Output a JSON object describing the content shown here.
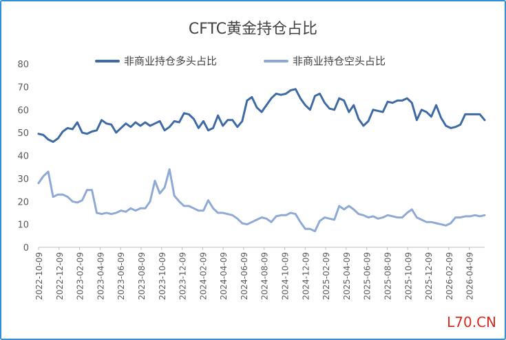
{
  "watermark": "L70.CN",
  "chart_data": {
    "type": "line",
    "title": "CFTC黄金持仓占比",
    "xlabel": "",
    "ylabel": "",
    "ylim": [
      0,
      80
    ],
    "yticks": [
      0,
      10,
      20,
      30,
      40,
      50,
      60,
      70,
      80
    ],
    "grid": false,
    "legend_position": "top",
    "x_tick_labels": [
      "2022-10-09",
      "2022-12-09",
      "2023-02-09",
      "2023-04-09",
      "2023-06-09",
      "2023-08-09",
      "2023-10-09",
      "2023-12-09",
      "2024-02-09",
      "2024-04-09",
      "2024-06-09",
      "2024-08-09",
      "2024-10-09",
      "2024-12-09",
      "2025-02-09",
      "2025-04-09",
      "2025-06-09",
      "2025-08-09",
      "2025-10-09",
      "2025-12-09",
      "2026-02-09",
      "2026-04-09"
    ],
    "series": [
      {
        "name": "非商业持仓多头占比",
        "color": "#3d6aa3",
        "values": [
          49.5,
          49,
          47,
          46,
          47.5,
          50.5,
          52,
          51.5,
          54.5,
          50,
          49.5,
          50.5,
          51,
          55.5,
          54,
          53.5,
          50,
          52,
          54,
          52.5,
          54.5,
          53,
          54.5,
          53,
          54,
          55,
          51,
          52.5,
          55,
          54.5,
          58.5,
          58,
          56,
          52,
          55,
          51,
          52,
          57.5,
          53,
          55.5,
          55.5,
          52.5,
          55,
          64,
          65.5,
          61,
          59,
          62,
          65,
          67,
          66.5,
          67,
          68.5,
          69,
          65,
          62,
          60,
          66,
          67,
          63,
          60.5,
          60,
          65,
          64,
          59,
          62,
          56,
          53,
          55,
          60,
          59.5,
          59,
          63.5,
          63,
          64,
          64,
          65,
          63,
          55.5,
          60,
          59,
          57,
          62,
          56.5,
          53,
          52,
          52.5,
          53.5,
          58,
          58,
          58,
          58,
          55.5
        ]
      },
      {
        "name": "非商业持仓空头占比",
        "color": "#8ea9d4",
        "values": [
          28,
          31,
          33,
          22,
          23,
          23,
          22,
          20,
          19.5,
          20.5,
          25,
          25,
          15,
          14.5,
          15,
          14.5,
          15,
          16,
          15.5,
          17,
          16,
          17,
          17,
          20,
          29,
          23.5,
          26,
          34,
          22.5,
          20,
          18,
          18,
          17,
          16,
          16,
          20.5,
          17,
          15,
          15,
          14.5,
          14,
          12.5,
          10.5,
          10,
          11,
          12,
          13,
          12.5,
          11,
          13.5,
          14,
          14,
          15,
          14.5,
          11,
          8,
          8,
          7,
          11.5,
          13,
          12.5,
          12,
          18,
          16.5,
          18,
          16.5,
          14.5,
          14,
          13,
          13.5,
          12.5,
          13,
          14,
          13.5,
          13,
          13,
          15,
          16.5,
          13,
          12,
          11,
          11,
          10.5,
          10,
          9.5,
          10.5,
          13,
          13,
          13.5,
          13.5,
          14,
          13.5,
          14
        ]
      }
    ]
  }
}
